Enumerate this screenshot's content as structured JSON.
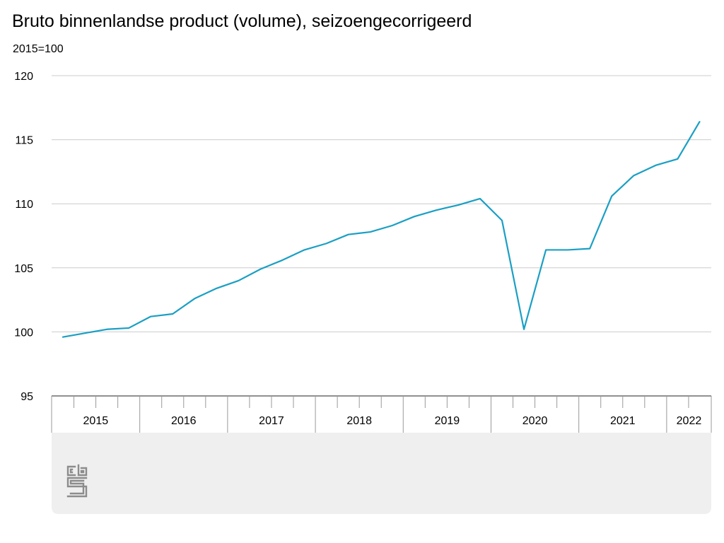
{
  "chart_data": {
    "type": "line",
    "title": "Bruto binnenlandse product (volume), seizoengecorrigeerd",
    "ylabel": "2015=100",
    "xlabel": "",
    "ylim": [
      95,
      120
    ],
    "yticks": [
      95,
      100,
      105,
      110,
      115,
      120
    ],
    "grid": true,
    "years": [
      {
        "label": "2015",
        "quarters": 4
      },
      {
        "label": "2016",
        "quarters": 4
      },
      {
        "label": "2017",
        "quarters": 4
      },
      {
        "label": "2018",
        "quarters": 4
      },
      {
        "label": "2019",
        "quarters": 4
      },
      {
        "label": "2020",
        "quarters": 4
      },
      {
        "label": "2021",
        "quarters": 4
      },
      {
        "label": "2022",
        "quarters": 2
      }
    ],
    "series": [
      {
        "color": "#1a9fc4",
        "values": [
          99.6,
          99.9,
          100.2,
          100.3,
          101.2,
          101.4,
          102.6,
          103.4,
          104.0,
          104.9,
          105.6,
          106.4,
          106.9,
          107.6,
          107.8,
          108.3,
          109.0,
          109.5,
          109.9,
          110.4,
          108.7,
          100.2,
          106.4,
          106.4,
          106.5,
          110.6,
          112.2,
          113.0,
          113.5,
          116.4
        ]
      }
    ]
  },
  "colors": {
    "line": "#1a9fc4",
    "grid": "#cccccc",
    "axis": "#999999",
    "footer_bg": "#efefef"
  },
  "logo": {
    "icon": "cbs-logo-icon",
    "text": "cbs"
  }
}
